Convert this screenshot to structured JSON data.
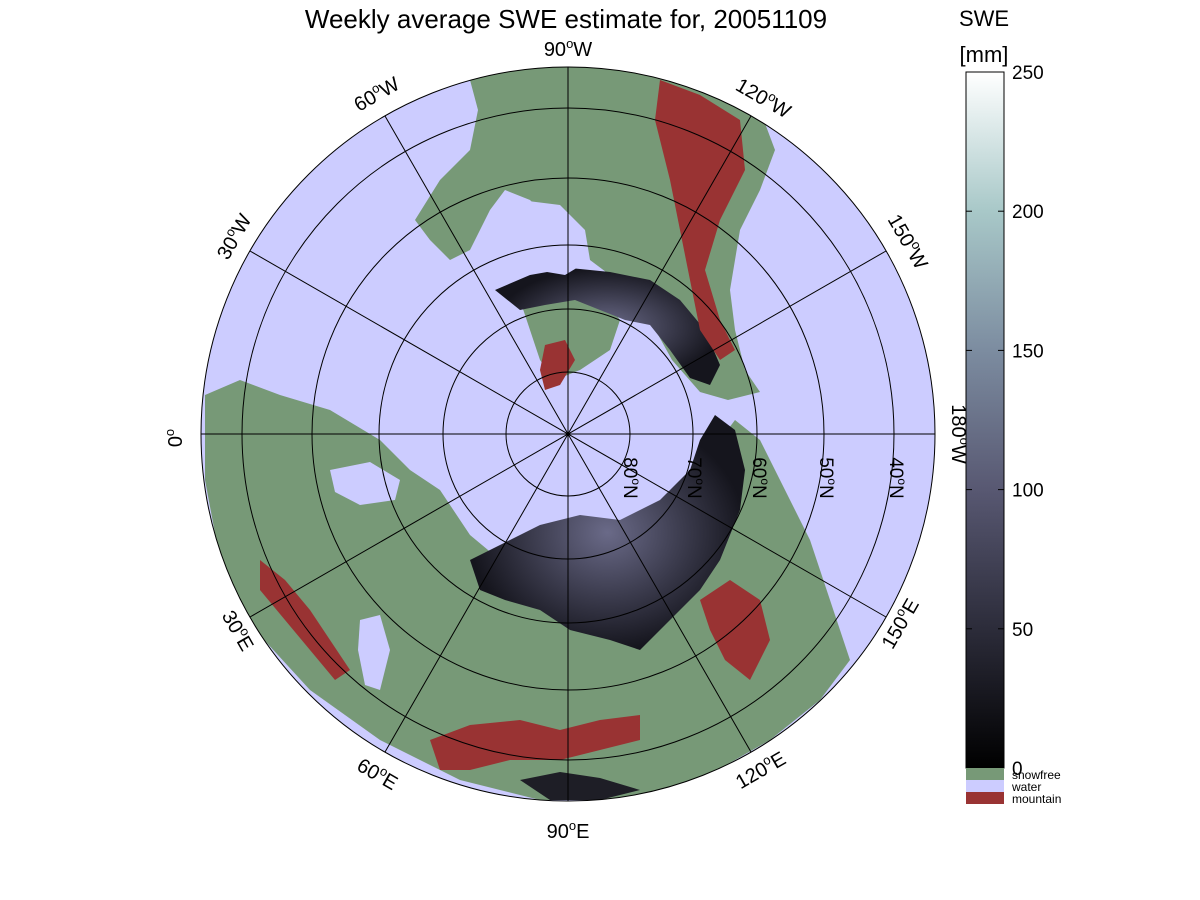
{
  "title": "Weekly average SWE estimate for, 20051109",
  "map": {
    "projection": "north-polar-stereographic",
    "colors": {
      "water": "#ccccff",
      "snowfree": "#779977",
      "mountain": "#993333",
      "swe_low": "#1a1a24",
      "swe_mid": "#4a4a64",
      "graticule": "#000000"
    },
    "longitude_labels": [
      {
        "text": "90°W",
        "deg": "90",
        "hemi": "W"
      },
      {
        "text": "120°W",
        "deg": "120",
        "hemi": "W"
      },
      {
        "text": "150°W",
        "deg": "150",
        "hemi": "W"
      },
      {
        "text": "180°W",
        "deg": "180",
        "hemi": "W"
      },
      {
        "text": "150°E",
        "deg": "150",
        "hemi": "E"
      },
      {
        "text": "120°E",
        "deg": "120",
        "hemi": "E"
      },
      {
        "text": "90°E",
        "deg": "90",
        "hemi": "E"
      },
      {
        "text": "60°E",
        "deg": "60",
        "hemi": "E"
      },
      {
        "text": "30°E",
        "deg": "30",
        "hemi": "E"
      },
      {
        "text": "0°",
        "deg": "0",
        "hemi": ""
      },
      {
        "text": "30°W",
        "deg": "30",
        "hemi": "W"
      },
      {
        "text": "60°W",
        "deg": "60",
        "hemi": "W"
      }
    ],
    "latitude_labels": [
      {
        "text": "80°N",
        "deg": "80",
        "hemi": "N"
      },
      {
        "text": "70°N",
        "deg": "70",
        "hemi": "N"
      },
      {
        "text": "60°N",
        "deg": "60",
        "hemi": "N"
      },
      {
        "text": "50°N",
        "deg": "50",
        "hemi": "N"
      },
      {
        "text": "40°N",
        "deg": "40",
        "hemi": "N"
      }
    ]
  },
  "colorbar": {
    "title_line1": "SWE",
    "title_line2": "[mm]",
    "min": 0,
    "max": 250,
    "ticks": [
      "0",
      "50",
      "100",
      "150",
      "200",
      "250"
    ],
    "gradient": [
      "#000000",
      "#2c2c3a",
      "#585872",
      "#7c8ca0",
      "#a8c8c8",
      "#ffffff"
    ],
    "legend": [
      {
        "label": "snowfree",
        "color": "#779977"
      },
      {
        "label": "water",
        "color": "#ccccff"
      },
      {
        "label": "mountain",
        "color": "#993333"
      }
    ]
  }
}
